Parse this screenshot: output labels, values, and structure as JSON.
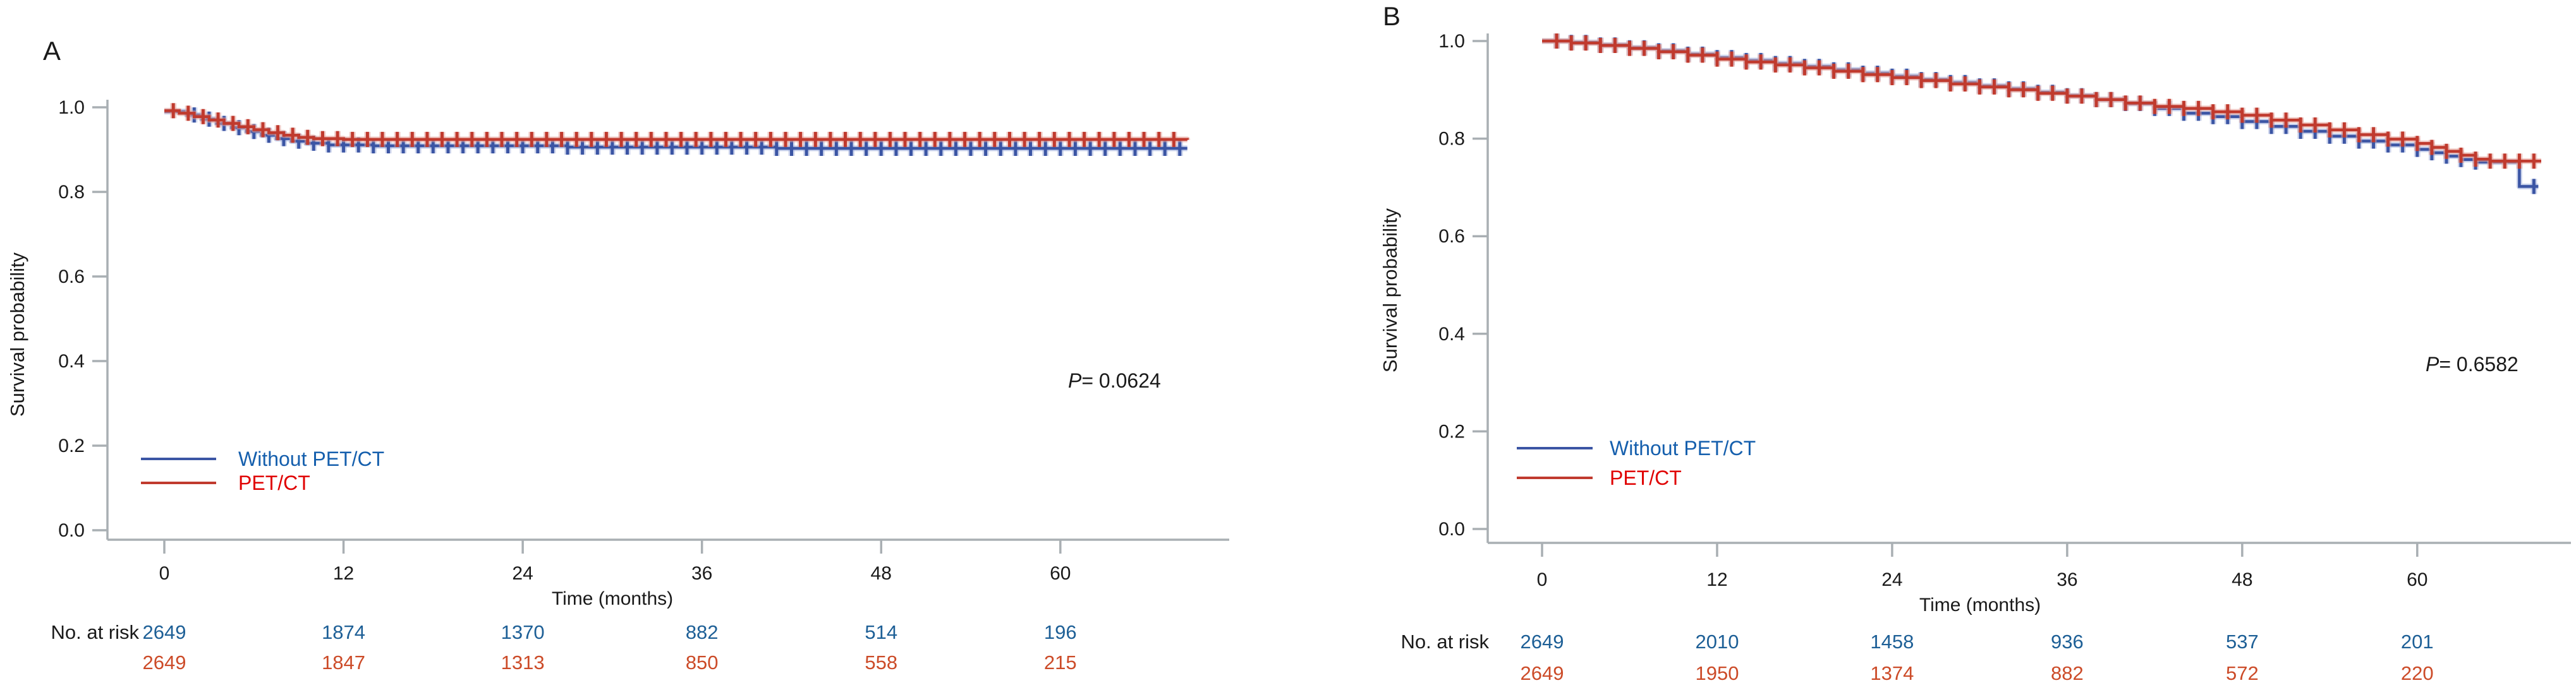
{
  "chart_data": {
    "type": "line",
    "subtype": "kaplan-meier-survival",
    "panels": [
      {
        "label": "A",
        "ylabel": "Survival probability",
        "xlabel": "Time (months)",
        "yticks": [
          1.0,
          0.8,
          0.6,
          0.4,
          0.2,
          0.0
        ],
        "xticks": [
          0,
          12,
          24,
          36,
          48,
          60
        ],
        "ylim": [
          0.0,
          1.0
        ],
        "xmax_months": 68.5,
        "grid": false,
        "legend_position": "lower-left-inside",
        "axis_color": "#A9AFB3",
        "text_color": "#1A1A1A",
        "pvalue": {
          "italic": "P",
          "rest": "= 0.0624"
        },
        "series": [
          {
            "name": "Without PET/CT",
            "line_color": "#3B55A4",
            "halo_color": "#9FAEDC",
            "legend_text_color": "#155FAD",
            "points": [
              [
                0,
                0.99
              ],
              [
                1.5,
                0.982
              ],
              [
                2.5,
                0.972
              ],
              [
                3.5,
                0.962
              ],
              [
                4.5,
                0.952
              ],
              [
                5.5,
                0.943
              ],
              [
                6.5,
                0.934
              ],
              [
                7.5,
                0.926
              ],
              [
                8.5,
                0.92
              ],
              [
                9.5,
                0.915
              ],
              [
                11,
                0.911
              ],
              [
                14,
                0.909
              ],
              [
                27,
                0.906
              ],
              [
                41,
                0.903
              ],
              [
                68.5,
                0.903
              ]
            ],
            "censors": [
              [
                2,
                68,
                1
              ]
            ]
          },
          {
            "name": "PET/CT",
            "line_color": "#C03A2E",
            "halo_color": "#E39C94",
            "legend_text_color": "#E00000",
            "points": [
              [
                0,
                0.992
              ],
              [
                1,
                0.986
              ],
              [
                2,
                0.978
              ],
              [
                3,
                0.97
              ],
              [
                4,
                0.962
              ],
              [
                5,
                0.954
              ],
              [
                6,
                0.947
              ],
              [
                7,
                0.94
              ],
              [
                8,
                0.934
              ],
              [
                9,
                0.929
              ],
              [
                10,
                0.926
              ],
              [
                12,
                0.924
              ],
              [
                68.5,
                0.923
              ]
            ],
            "censors": [
              [
                0.6,
                68.4,
                1
              ]
            ]
          }
        ],
        "risk_table": {
          "label": "No. at risk",
          "times": [
            0,
            12,
            24,
            36,
            48,
            60
          ],
          "rows": [
            {
              "name": "Without PET/CT",
              "color": "#1D5F96",
              "values": [
                "2649",
                "1874",
                "1370",
                "882",
                "514",
                "196"
              ]
            },
            {
              "name": "PET/CT",
              "color": "#CC4B28",
              "values": [
                "2649",
                "1847",
                "1313",
                "850",
                "558",
                "215"
              ]
            }
          ]
        }
      },
      {
        "label": "B",
        "ylabel": "Survival probability",
        "xlabel": "Time (months)",
        "yticks": [
          1.0,
          0.8,
          0.6,
          0.4,
          0.2,
          0.0
        ],
        "xticks": [
          0,
          12,
          24,
          36,
          48,
          60
        ],
        "ylim": [
          0.0,
          1.0
        ],
        "xmax_months": 68.5,
        "grid": false,
        "legend_position": "lower-left-inside",
        "axis_color": "#A9AFB3",
        "text_color": "#1A1A1A",
        "pvalue": {
          "italic": "P",
          "rest": "= 0.6582"
        },
        "series": [
          {
            "name": "Without PET/CT",
            "line_color": "#3B55A4",
            "halo_color": "#9FAEDC",
            "legend_text_color": "#155FAD",
            "points": [
              [
                0,
                1.0
              ],
              [
                2,
                0.997
              ],
              [
                4,
                0.992
              ],
              [
                6,
                0.986
              ],
              [
                8,
                0.98
              ],
              [
                10,
                0.973
              ],
              [
                12,
                0.966
              ],
              [
                14,
                0.96
              ],
              [
                16,
                0.954
              ],
              [
                18,
                0.948
              ],
              [
                20,
                0.941
              ],
              [
                22,
                0.934
              ],
              [
                24,
                0.928
              ],
              [
                26,
                0.921
              ],
              [
                28,
                0.915
              ],
              [
                30,
                0.908
              ],
              [
                32,
                0.902
              ],
              [
                34,
                0.895
              ],
              [
                36,
                0.888
              ],
              [
                38,
                0.88
              ],
              [
                40,
                0.872
              ],
              [
                42,
                0.862
              ],
              [
                44,
                0.852
              ],
              [
                46,
                0.845
              ],
              [
                48,
                0.835
              ],
              [
                50,
                0.825
              ],
              [
                52,
                0.815
              ],
              [
                54,
                0.805
              ],
              [
                56,
                0.795
              ],
              [
                58,
                0.787
              ],
              [
                60,
                0.778
              ],
              [
                61,
                0.771
              ],
              [
                62,
                0.764
              ],
              [
                63,
                0.757
              ],
              [
                64,
                0.752
              ],
              [
                67,
                0.702
              ],
              [
                68.3,
                0.702
              ]
            ],
            "censors": [
              [
                1,
                64,
                1
              ],
              [
                68,
                68,
                1
              ]
            ]
          },
          {
            "name": "PET/CT",
            "line_color": "#C03A2E",
            "halo_color": "#E39C94",
            "legend_text_color": "#E00000",
            "points": [
              [
                0,
                1.0
              ],
              [
                2,
                0.996
              ],
              [
                4,
                0.991
              ],
              [
                6,
                0.985
              ],
              [
                8,
                0.978
              ],
              [
                10,
                0.971
              ],
              [
                12,
                0.963
              ],
              [
                14,
                0.957
              ],
              [
                16,
                0.951
              ],
              [
                18,
                0.945
              ],
              [
                20,
                0.938
              ],
              [
                22,
                0.931
              ],
              [
                24,
                0.925
              ],
              [
                26,
                0.919
              ],
              [
                28,
                0.912
              ],
              [
                30,
                0.906
              ],
              [
                32,
                0.9
              ],
              [
                34,
                0.893
              ],
              [
                36,
                0.887
              ],
              [
                38,
                0.88
              ],
              [
                40,
                0.873
              ],
              [
                42,
                0.866
              ],
              [
                44,
                0.862
              ],
              [
                46,
                0.855
              ],
              [
                48,
                0.848
              ],
              [
                50,
                0.838
              ],
              [
                52,
                0.828
              ],
              [
                54,
                0.818
              ],
              [
                56,
                0.808
              ],
              [
                58,
                0.799
              ],
              [
                60,
                0.79
              ],
              [
                61,
                0.782
              ],
              [
                62,
                0.774
              ],
              [
                63,
                0.766
              ],
              [
                64,
                0.758
              ],
              [
                65,
                0.754
              ],
              [
                68.5,
                0.754
              ]
            ],
            "censors": [
              [
                1,
                68.4,
                1
              ]
            ]
          }
        ],
        "risk_table": {
          "label": "No. at risk",
          "times": [
            0,
            12,
            24,
            36,
            48,
            60
          ],
          "rows": [
            {
              "name": "Without PET/CT",
              "color": "#1D5F96",
              "values": [
                "2649",
                "2010",
                "1458",
                "936",
                "537",
                "201"
              ]
            },
            {
              "name": "PET/CT",
              "color": "#CC4B28",
              "values": [
                "2649",
                "1950",
                "1374",
                "882",
                "572",
                "220"
              ]
            }
          ]
        }
      }
    ]
  }
}
